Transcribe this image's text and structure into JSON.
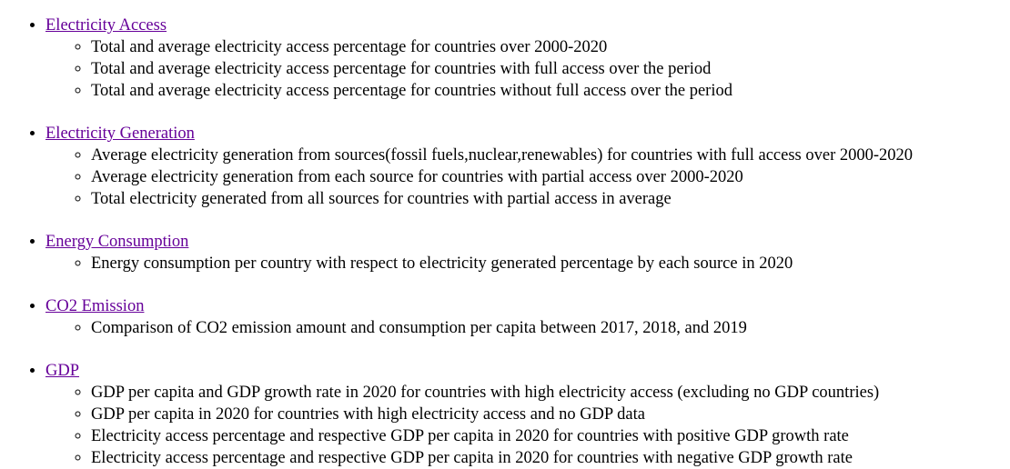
{
  "sections": [
    {
      "link": "Electricity Access",
      "items": [
        "Total and average electricity access percentage for countries over 2000-2020",
        "Total and average electricity access percentage for countries with full access over the period",
        "Total and average electricity access percentage for countries without full access over the period"
      ]
    },
    {
      "link": "Electricity Generation",
      "items": [
        "Average electricity generation from sources(fossil fuels,nuclear,renewables) for countries with full access over 2000-2020",
        "Average electricity generation from each source for countries with partial access over 2000-2020",
        "Total electricity generated from all sources for countries with partial access in average"
      ]
    },
    {
      "link": "Energy Consumption",
      "items": [
        "Energy consumption per country with respect to electricity generated percentage by each source in 2020"
      ]
    },
    {
      "link": "CO2 Emission",
      "items": [
        "Comparison of CO2 emission amount and consumption per capita between 2017, 2018, and 2019"
      ]
    },
    {
      "link": "GDP",
      "items": [
        "GDP per capita and GDP growth rate in 2020 for countries with high electricity access (excluding no GDP countries)",
        "GDP per capita in 2020 for countries with high electricity access and no GDP data",
        "Electricity access percentage and respective GDP per capita in 2020 for countries with positive GDP growth rate",
        "Electricity access percentage and respective GDP per capita in 2020 for countries with negative GDP growth rate"
      ]
    }
  ],
  "colors": {
    "link": "#660099",
    "text": "#000000",
    "background": "#ffffff"
  }
}
